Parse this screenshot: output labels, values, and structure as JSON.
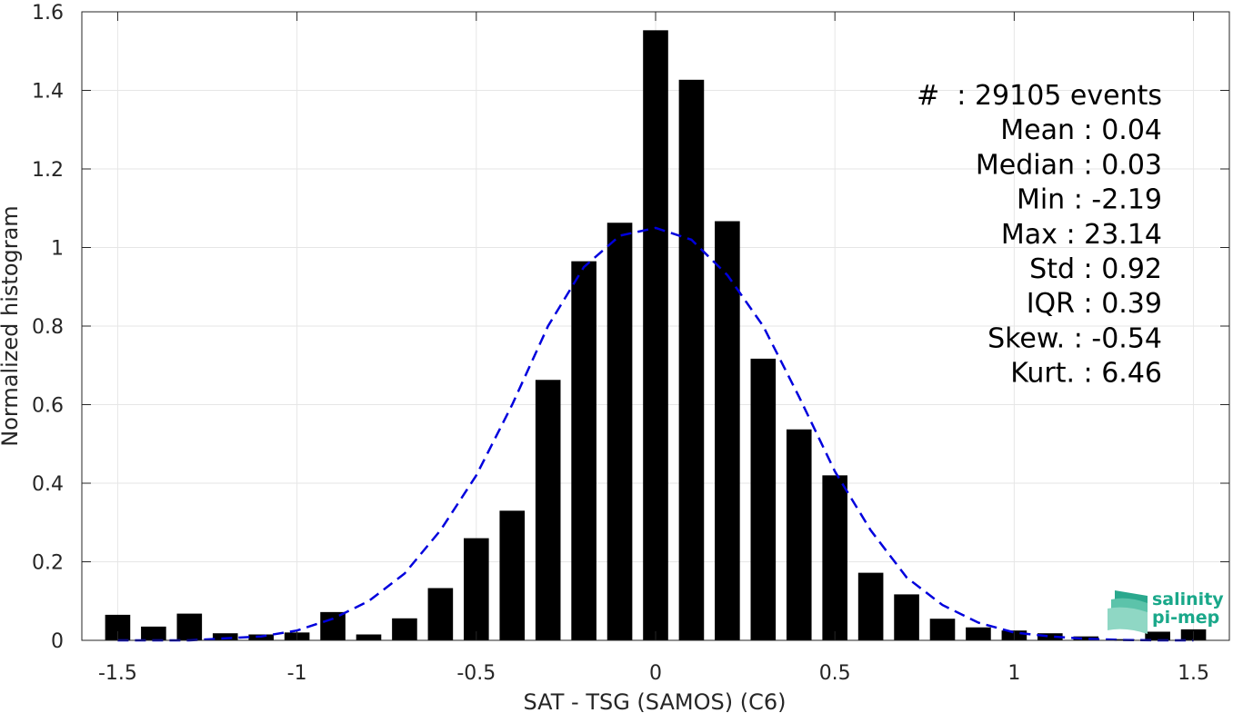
{
  "chart_data": {
    "type": "bar",
    "xlabel": "SAT - TSG (SAMOS) (C6)",
    "ylabel": "Normalized histogram",
    "xlim": [
      -1.6,
      1.6
    ],
    "ylim": [
      0,
      1.6
    ],
    "xticks": [
      -1.5,
      -1,
      -0.5,
      0,
      0.5,
      1,
      1.5
    ],
    "xtick_labels": [
      "-1.5",
      "-1",
      "-0.5",
      "0",
      "0.5",
      "1",
      "1.5"
    ],
    "yticks": [
      0,
      0.2,
      0.4,
      0.6,
      0.8,
      1,
      1.2,
      1.4,
      1.6
    ],
    "ytick_labels": [
      "0",
      "0.2",
      "0.4",
      "0.6",
      "0.8",
      "1",
      "1.2",
      "1.4",
      "1.6"
    ],
    "grid": true,
    "bar_color": "#000000",
    "bin_width": 0.1,
    "bins": [
      -1.5,
      -1.4,
      -1.3,
      -1.2,
      -1.1,
      -1.0,
      -0.9,
      -0.8,
      -0.7,
      -0.6,
      -0.5,
      -0.4,
      -0.3,
      -0.2,
      -0.1,
      0.0,
      0.1,
      0.2,
      0.3,
      0.4,
      0.5,
      0.6,
      0.7,
      0.8,
      0.9,
      1.0,
      1.1,
      1.2,
      1.3,
      1.4,
      1.5
    ],
    "values": [
      0.065,
      0.035,
      0.068,
      0.018,
      0.015,
      0.02,
      0.072,
      0.015,
      0.056,
      0.133,
      0.26,
      0.33,
      0.663,
      0.965,
      1.063,
      1.553,
      1.427,
      1.067,
      0.717,
      0.537,
      0.42,
      0.172,
      0.117,
      0.055,
      0.033,
      0.025,
      0.018,
      0.01,
      0.003,
      0.022,
      0.028
    ],
    "fit_curve": {
      "style": "dashed",
      "color": "#0000dd",
      "x": [
        -1.5,
        -1.4,
        -1.3,
        -1.2,
        -1.1,
        -1.0,
        -0.9,
        -0.8,
        -0.7,
        -0.6,
        -0.5,
        -0.4,
        -0.3,
        -0.2,
        -0.1,
        0.0,
        0.1,
        0.2,
        0.3,
        0.4,
        0.5,
        0.6,
        0.7,
        0.8,
        0.9,
        1.0,
        1.1,
        1.2,
        1.3,
        1.4,
        1.5
      ],
      "y": [
        0.0,
        0.0,
        0.0,
        0.005,
        0.01,
        0.025,
        0.055,
        0.1,
        0.17,
        0.28,
        0.42,
        0.6,
        0.8,
        0.95,
        1.03,
        1.05,
        1.02,
        0.93,
        0.8,
        0.62,
        0.43,
        0.28,
        0.16,
        0.09,
        0.045,
        0.02,
        0.01,
        0.004,
        0.001,
        0.0,
        0.0
      ]
    }
  },
  "stats": [
    {
      "label": "#",
      "sep": "  : ",
      "value": "29105 events"
    },
    {
      "label": "Mean",
      "sep": " : ",
      "value": "0.04"
    },
    {
      "label": "Median",
      "sep": " : ",
      "value": "0.03"
    },
    {
      "label": "Min",
      "sep": " : ",
      "value": "-2.19"
    },
    {
      "label": "Max",
      "sep": " : ",
      "value": "23.14"
    },
    {
      "label": "Std",
      "sep": " : ",
      "value": "0.92"
    },
    {
      "label": "IQR",
      "sep": " : ",
      "value": "0.39"
    },
    {
      "label": "Skew.",
      "sep": " : ",
      "value": "-0.54"
    },
    {
      "label": "Kurt.",
      "sep": " : ",
      "value": "6.46"
    }
  ],
  "logo": {
    "line1": "salinity",
    "line2": "pi-mep",
    "icon": "wave-stack-icon",
    "color": "#1aa88a"
  }
}
